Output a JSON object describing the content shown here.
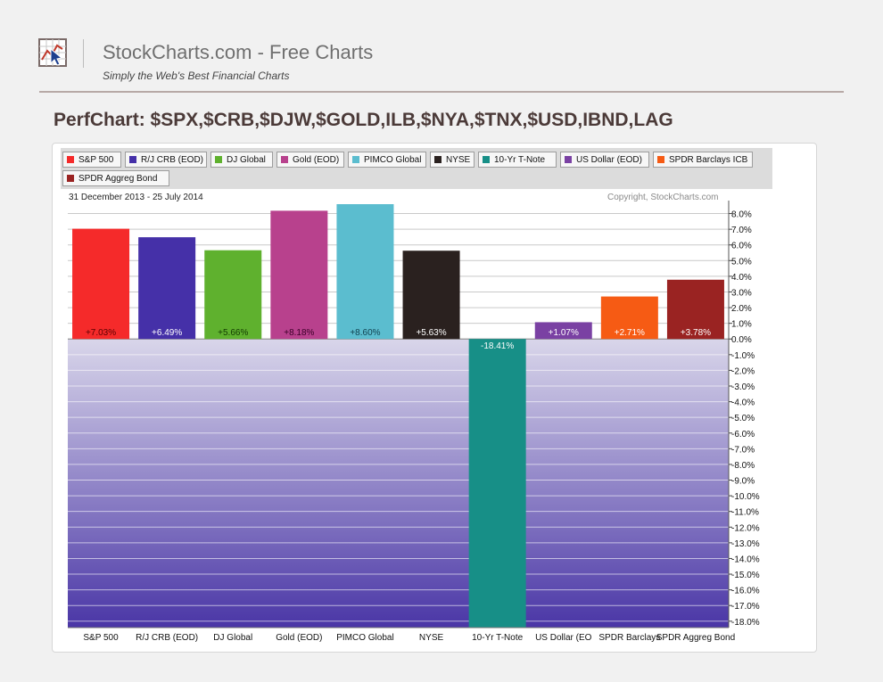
{
  "header": {
    "site_title": "StockCharts.com - Free Charts",
    "tagline": "Simply the Web's Best Financial Charts",
    "logo_icon": "chart-cursor-icon"
  },
  "perf_title": "PerfChart: $SPX,$CRB,$DJW,$GOLD,ILB,$NYA,$TNX,$USD,IBND,LAG",
  "chart_meta": {
    "period": "31 December 2013 - 25 July 2014",
    "copyright": "Copyright, StockCharts.com"
  },
  "chart_data": {
    "type": "bar",
    "categories": [
      "S&P 500",
      "R/J CRB (EOD)",
      "DJ Global",
      "Gold (EOD)",
      "PIMCO Global",
      "NYSE",
      "10-Yr T-Note",
      "US Dollar (EOD)",
      "SPDR Barclays ICB",
      "SPDR Aggreg Bond"
    ],
    "category_axis_labels": [
      "S&P 500",
      "R/J CRB (EOD)",
      "DJ Global",
      "Gold (EOD)",
      "PIMCO Global",
      "NYSE",
      "10-Yr T-Note",
      "US Dollar (EO",
      "SPDR Barclays",
      "SPDR Aggreg Bond"
    ],
    "values": [
      7.03,
      6.49,
      5.66,
      8.18,
      8.6,
      5.63,
      -18.41,
      1.07,
      2.71,
      3.78
    ],
    "value_labels": [
      "+7.03%",
      "+6.49%",
      "+5.66%",
      "+8.18%",
      "+8.60%",
      "+5.63%",
      "-18.41%",
      "+1.07%",
      "+2.71%",
      "+3.78%"
    ],
    "colors": [
      "#f52a2a",
      "#4530a8",
      "#5fb12e",
      "#b8418d",
      "#5bbdcf",
      "#2a211f",
      "#178f87",
      "#7a41a3",
      "#f65b14",
      "#9a2322"
    ],
    "label_colors": [
      "#5a0000",
      "#ffffff",
      "#123a00",
      "#3a0028",
      "#0f3f4d",
      "#ffffff",
      "#ffffff",
      "#ffffff",
      "#ffffff",
      "#ffffff"
    ],
    "ylim": [
      -18.41,
      8.6
    ],
    "y_ticks": [
      8,
      7,
      6,
      5,
      4,
      3,
      2,
      1,
      0,
      -1,
      -2,
      -3,
      -4,
      -5,
      -6,
      -7,
      -8,
      -9,
      -10,
      -11,
      -12,
      -13,
      -14,
      -15,
      -16,
      -17,
      -18
    ],
    "y_tick_labels": [
      "8.0%",
      "7.0%",
      "6.0%",
      "5.0%",
      "4.0%",
      "3.0%",
      "2.0%",
      "1.0%",
      "0.0%",
      "-1.0%",
      "-2.0%",
      "-3.0%",
      "-4.0%",
      "-5.0%",
      "-6.0%",
      "-7.0%",
      "-8.0%",
      "-9.0%",
      "-10.0%",
      "-11.0%",
      "-12.0%",
      "-13.0%",
      "-14.0%",
      "-15.0%",
      "-16.0%",
      "-17.0%",
      "-18.0%"
    ],
    "grid": true,
    "legend": "top",
    "negative_region_color": "#5b47b0",
    "title": "",
    "xlabel": "",
    "ylabel": ""
  }
}
